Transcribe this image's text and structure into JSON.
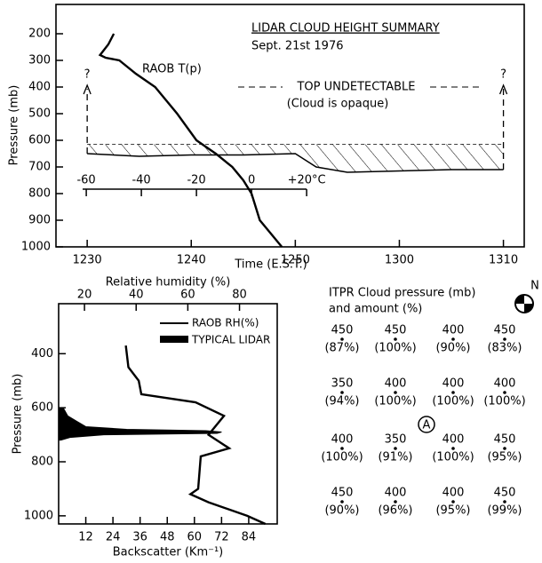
{
  "chart_data": [
    {
      "type": "line",
      "title": "LIDAR CLOUD HEIGHT SUMMARY",
      "subtitle": "Sept. 21st 1976",
      "xlabel": "Time (E.S.T.)",
      "ylabel": "Pressure (mb)",
      "xlim": [
        27,
        72
      ],
      "xticks": [
        {
          "value": 30,
          "label": "1230"
        },
        {
          "value": 40,
          "label": "1240"
        },
        {
          "value": 50,
          "label": "1250"
        },
        {
          "value": 60,
          "label": "1300"
        },
        {
          "value": 70,
          "label": "1310"
        }
      ],
      "ylim": [
        1000,
        90
      ],
      "yticks": [
        200,
        300,
        400,
        500,
        600,
        700,
        800,
        900,
        1000
      ],
      "x2lim": [
        -71,
        99
      ],
      "x2ticks": [
        -60,
        -40,
        -20,
        0,
        {
          "value": 20,
          "label": "+20°C"
        }
      ],
      "series": [
        {
          "name": "RAOB T(p)",
          "axis": "x2",
          "color": "#000000",
          "x": [
            -50,
            -52,
            -55,
            -53,
            -48,
            -42,
            -35,
            -27,
            -20,
            -13,
            -7,
            -3,
            0,
            3,
            11
          ],
          "values": [
            200,
            240,
            280,
            290,
            300,
            350,
            400,
            500,
            600,
            650,
            700,
            750,
            800,
            900,
            1000
          ]
        }
      ],
      "cloud": {
        "x": [
          30,
          35,
          40,
          45,
          50,
          52,
          55,
          60,
          65,
          70
        ],
        "top": [
          615,
          615,
          615,
          615,
          615,
          615,
          615,
          615,
          615,
          615
        ],
        "base": [
          650,
          660,
          655,
          655,
          650,
          700,
          720,
          715,
          710,
          710
        ]
      },
      "annotations": [
        "TOP UNDETECTABLE",
        "(Cloud is opaque)",
        "?",
        "?"
      ]
    },
    {
      "type": "line",
      "xlabel": "Backscatter (Km⁻¹)",
      "x2label": "Relative humidity (%)",
      "ylabel": "Pressure (mb)",
      "xlim": [
        0,
        96.6
      ],
      "xticks": [
        12,
        24,
        36,
        48,
        60,
        72,
        84
      ],
      "x2lim": [
        10,
        94.6
      ],
      "x2ticks": [
        20,
        40,
        60,
        80
      ],
      "ylim": [
        1030,
        215
      ],
      "yticks": [
        400,
        600,
        800,
        1000
      ],
      "series": [
        {
          "name": "RAOB RH(%)",
          "axis": "x2",
          "color": "#000000",
          "x": [
            36,
            37,
            41,
            42,
            63,
            74,
            68,
            76,
            65,
            64,
            61,
            68,
            83,
            90
          ],
          "values": [
            370,
            450,
            500,
            550,
            580,
            630,
            700,
            750,
            780,
            900,
            920,
            950,
            1000,
            1030
          ]
        },
        {
          "name": "TYPICAL LIDAR",
          "type": "area",
          "color": "#000000",
          "x": [
            2,
            4,
            8,
            12,
            30,
            65,
            72,
            70,
            20,
            5,
            1
          ],
          "values": [
            600,
            630,
            650,
            670,
            680,
            685,
            690,
            695,
            700,
            710,
            720
          ]
        }
      ]
    }
  ],
  "itpr": {
    "title_lines": [
      "ITPR Cloud pressure (mb)",
      "and amount (%)"
    ],
    "rows": [
      [
        [
          "450",
          "(87%)"
        ],
        [
          "450",
          "(100%)"
        ],
        [
          "400",
          "(90%)"
        ],
        [
          "450",
          "(83%)"
        ]
      ],
      [
        [
          "350",
          "(94%)"
        ],
        [
          "400",
          "(100%)"
        ],
        [
          "400",
          "(100%)"
        ],
        [
          "400",
          "(100%)"
        ]
      ],
      [
        [
          "400",
          "(100%)"
        ],
        [
          "350",
          "(91%)"
        ],
        [
          "400",
          "(100%)"
        ],
        [
          "450",
          "(95%)"
        ]
      ],
      [
        [
          "450",
          "(90%)"
        ],
        [
          "400",
          "(96%)"
        ],
        [
          "400",
          "(95%)"
        ],
        [
          "450",
          "(99%)"
        ]
      ]
    ],
    "marker": "A",
    "north": "N"
  }
}
